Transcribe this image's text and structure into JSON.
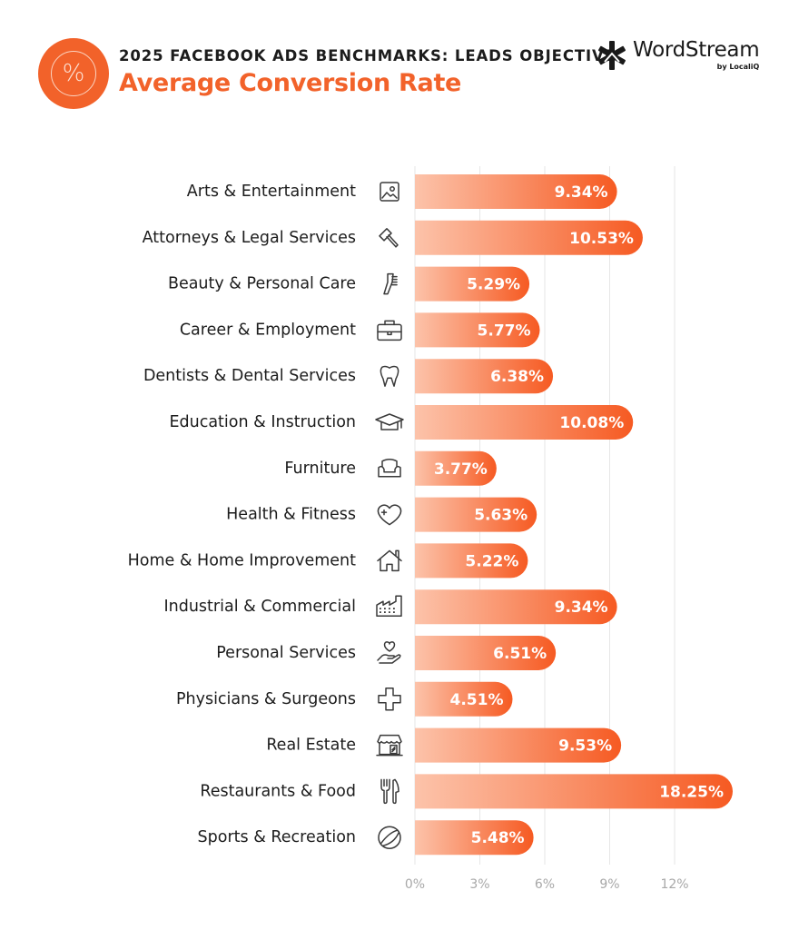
{
  "header": {
    "subtitle": "2025 FACEBOOK ADS BENCHMARKS: LEADS OBJECTIVE",
    "title": "Average Conversion Rate",
    "badge_icon": "percent-icon",
    "badge_symbol": "%"
  },
  "brand": {
    "name": "WordStream",
    "tagline": "by LocaliQ",
    "logo_icon": "wordstream-asterisk-icon"
  },
  "colors": {
    "accent": "#f2622a",
    "bar_gradient_start": "#fcc3aa",
    "bar_gradient_end": "#f65a22",
    "grid": "#e6e6e6",
    "tick_text": "#a8a8a8"
  },
  "chart_data": {
    "type": "bar",
    "orientation": "horizontal",
    "title": "Average Conversion Rate",
    "subtitle": "2025 FACEBOOK ADS BENCHMARKS: LEADS OBJECTIVE",
    "xlabel": "",
    "ylabel": "",
    "unit": "%",
    "xlim": [
      0,
      12
    ],
    "xticks": [
      0,
      3,
      6,
      9,
      12
    ],
    "xtick_labels": [
      "0%",
      "3%",
      "6%",
      "9%",
      "12%"
    ],
    "grid": true,
    "legend": "none",
    "categories": [
      "Arts & Entertainment",
      "Attorneys & Legal Services",
      "Beauty & Personal Care",
      "Career & Employment",
      "Dentists & Dental Services",
      "Education & Instruction",
      "Furniture",
      "Health & Fitness",
      "Home & Home Improvement",
      "Industrial & Commercial",
      "Personal Services",
      "Physicians & Surgeons",
      "Real Estate",
      "Restaurants & Food",
      "Sports & Recreation"
    ],
    "values": [
      9.34,
      10.53,
      5.29,
      5.77,
      6.38,
      10.08,
      3.77,
      5.63,
      5.22,
      9.34,
      6.51,
      4.51,
      9.53,
      18.25,
      5.48
    ],
    "value_labels": [
      "9.34%",
      "10.53%",
      "5.29%",
      "5.77%",
      "6.38%",
      "10.08%",
      "3.77%",
      "5.63%",
      "5.22%",
      "9.34%",
      "6.51%",
      "4.51%",
      "9.53%",
      "18.25%",
      "5.48%"
    ],
    "icons": [
      "picture-icon",
      "gavel-icon",
      "comb-icon",
      "briefcase-icon",
      "tooth-icon",
      "graduation-cap-icon",
      "armchair-icon",
      "heart-plus-icon",
      "house-icon",
      "factory-icon",
      "hand-heart-icon",
      "medical-cross-icon",
      "storefront-icon",
      "fork-knife-icon",
      "tennis-ball-icon"
    ],
    "notes": "Restaurants & Food bar (18.25%) is visually truncated in the source: it is drawn ending near 14.5% on the axis scale, past the 12% axis maximum."
  }
}
